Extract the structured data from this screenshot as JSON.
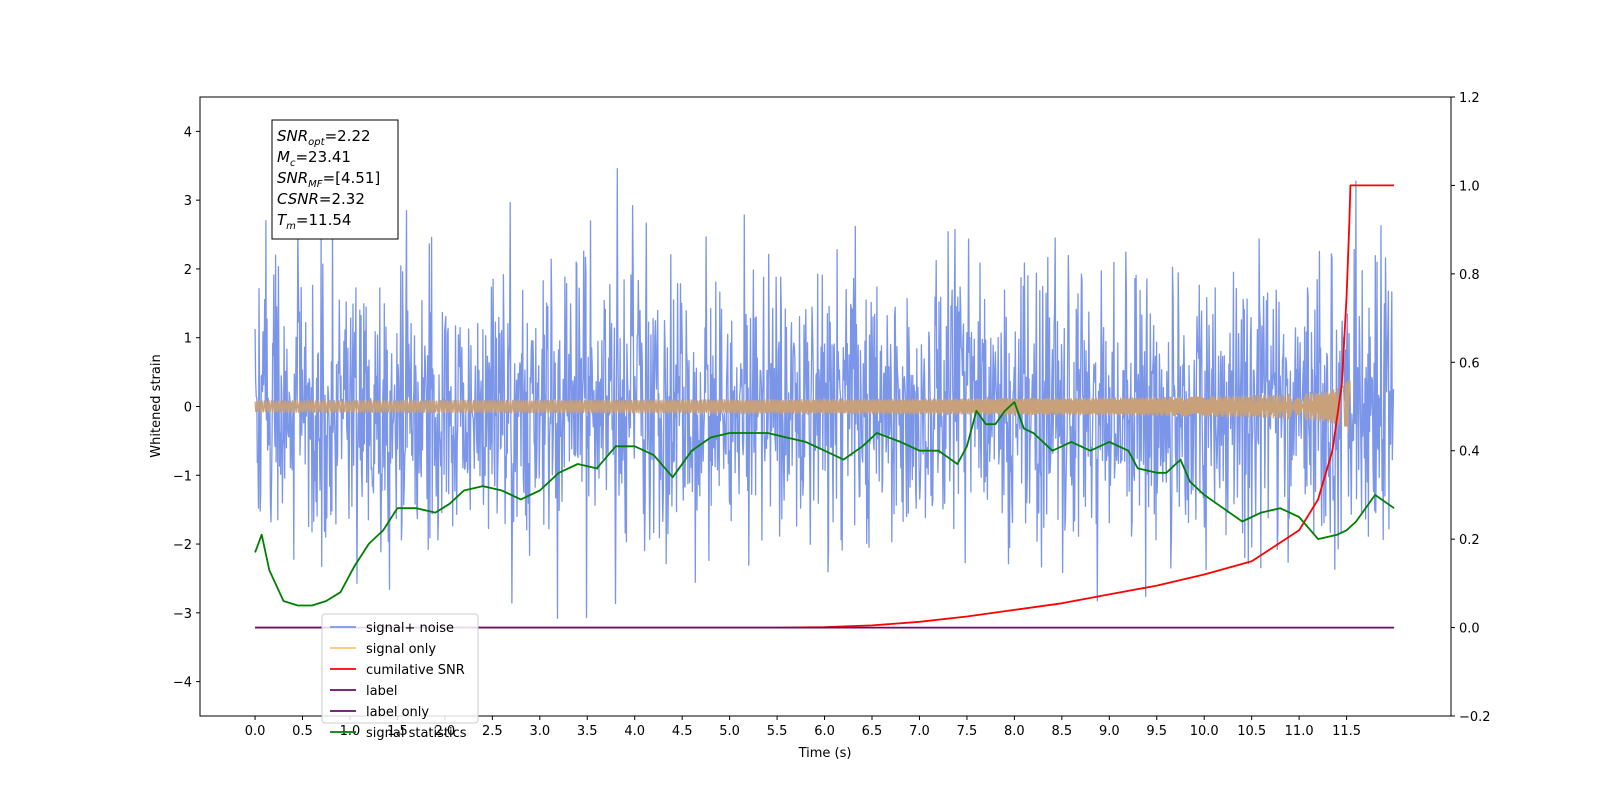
{
  "chart_data": {
    "type": "line",
    "xlabel": "Time (s)",
    "ylabel": "Whitened strain",
    "xlim": [
      -0.58,
      12.6
    ],
    "ylim": [
      -4.5,
      4.5
    ],
    "y2lim": [
      -0.2,
      1.2
    ],
    "x_ticks": [
      0.0,
      0.5,
      1.0,
      1.5,
      2.0,
      2.5,
      3.0,
      3.5,
      4.0,
      4.5,
      5.0,
      5.5,
      6.0,
      6.5,
      7.0,
      7.5,
      8.0,
      8.5,
      9.0,
      9.5,
      10.0,
      10.5,
      11.0,
      11.5
    ],
    "x_tick_labels": [
      "0.0",
      "0.5",
      "1.0",
      "1.5",
      "2.0",
      "2.5",
      "3.0",
      "3.5",
      "4.0",
      "4.5",
      "5.0",
      "5.5",
      "6.0",
      "6.5",
      "7.0",
      "7.5",
      "8.0",
      "8.5",
      "9.0",
      "9.5",
      "10.0",
      "10.5",
      "11.0",
      "11.5"
    ],
    "y_ticks": [
      -4,
      -3,
      -2,
      -1,
      0,
      1,
      2,
      3,
      4
    ],
    "y_tick_labels": [
      "−4",
      "−3",
      "−2",
      "−1",
      "0",
      "1",
      "2",
      "3",
      "4"
    ],
    "y2_ticks": [
      -0.2,
      0.0,
      0.2,
      0.4,
      0.6,
      0.8,
      1.0,
      1.2
    ],
    "y2_tick_labels": [
      "−0.2",
      "0.0",
      "0.2",
      "0.4",
      "0.6",
      "0.8",
      "1.0",
      "1.2"
    ],
    "annotation": [
      {
        "base": "SNR",
        "sub": "opt",
        "rest": "=2.22"
      },
      {
        "base": "M",
        "sub": "c",
        "rest": "=23.41"
      },
      {
        "base": "SNR",
        "sub": "MF",
        "rest": "=[4.51]"
      },
      {
        "base": "CSNR",
        "sub": "",
        "rest": "=2.32"
      },
      {
        "base": "T",
        "sub": "m",
        "rest": "=11.54"
      }
    ],
    "legend": {
      "placement": "lower-left",
      "entries": [
        {
          "label": "signal+ noise",
          "color": "#7b96e8"
        },
        {
          "label": "signal only",
          "color": "#ffc566"
        },
        {
          "label": "cumilative SNR",
          "color": "#ff0000"
        },
        {
          "label": "label",
          "color": "#6a0a6a"
        },
        {
          "label": "label only",
          "color": "#6a0a6a"
        },
        {
          "label": "signal statistics",
          "color": "#008000"
        }
      ]
    },
    "series": [
      {
        "name": "signal+ noise",
        "axis": "left",
        "color": "#7b96e8",
        "x_range": [
          0.0,
          12.0
        ],
        "sample_step": 0.006,
        "std": 1.0,
        "max": 3.92,
        "min": -3.82
      },
      {
        "name": "signal only",
        "axis": "left",
        "color": "#c8a07a",
        "x_range": [
          0.0,
          11.54
        ],
        "peak_time": 11.54,
        "peak_amplitude": 0.42,
        "baseline": 0.0
      },
      {
        "name": "cumilative SNR",
        "axis": "right",
        "color": "#ff0000",
        "x": [
          0.0,
          5.5,
          6.0,
          6.5,
          7.0,
          7.5,
          8.0,
          8.5,
          9.0,
          9.5,
          10.0,
          10.5,
          11.0,
          11.2,
          11.35,
          11.45,
          11.5,
          11.53,
          11.54,
          12.0
        ],
        "values": [
          0.0,
          0.0,
          0.001,
          0.005,
          0.013,
          0.025,
          0.04,
          0.055,
          0.075,
          0.095,
          0.12,
          0.15,
          0.22,
          0.29,
          0.4,
          0.55,
          0.75,
          0.92,
          1.0,
          1.0
        ]
      },
      {
        "name": "label",
        "axis": "right",
        "color": "#6a0a6a",
        "x": [
          0.0,
          12.0
        ],
        "values": [
          0.0,
          0.0
        ]
      },
      {
        "name": "signal statistics",
        "axis": "right",
        "color": "#008000",
        "x": [
          0.0,
          0.07,
          0.15,
          0.3,
          0.45,
          0.6,
          0.75,
          0.9,
          1.05,
          1.2,
          1.35,
          1.5,
          1.7,
          1.9,
          2.05,
          2.2,
          2.4,
          2.6,
          2.8,
          3.0,
          3.2,
          3.4,
          3.6,
          3.8,
          4.0,
          4.2,
          4.4,
          4.6,
          4.8,
          5.0,
          5.2,
          5.4,
          5.6,
          5.8,
          6.0,
          6.2,
          6.4,
          6.55,
          6.8,
          7.0,
          7.2,
          7.4,
          7.5,
          7.6,
          7.7,
          7.8,
          7.9,
          8.0,
          8.1,
          8.2,
          8.4,
          8.6,
          8.8,
          9.0,
          9.2,
          9.3,
          9.5,
          9.6,
          9.75,
          9.85,
          10.0,
          10.2,
          10.4,
          10.6,
          10.8,
          11.0,
          11.2,
          11.4,
          11.5,
          11.6,
          11.8,
          12.0
        ],
        "values": [
          0.17,
          0.21,
          0.13,
          0.06,
          0.05,
          0.05,
          0.06,
          0.08,
          0.14,
          0.19,
          0.22,
          0.27,
          0.27,
          0.26,
          0.28,
          0.31,
          0.32,
          0.31,
          0.29,
          0.31,
          0.35,
          0.37,
          0.36,
          0.41,
          0.41,
          0.39,
          0.34,
          0.4,
          0.43,
          0.44,
          0.44,
          0.44,
          0.43,
          0.42,
          0.4,
          0.38,
          0.41,
          0.44,
          0.42,
          0.4,
          0.4,
          0.37,
          0.41,
          0.49,
          0.46,
          0.46,
          0.49,
          0.51,
          0.45,
          0.44,
          0.4,
          0.42,
          0.4,
          0.42,
          0.4,
          0.36,
          0.35,
          0.35,
          0.38,
          0.33,
          0.3,
          0.27,
          0.24,
          0.26,
          0.27,
          0.25,
          0.2,
          0.21,
          0.22,
          0.24,
          0.3,
          0.27
        ]
      }
    ]
  }
}
